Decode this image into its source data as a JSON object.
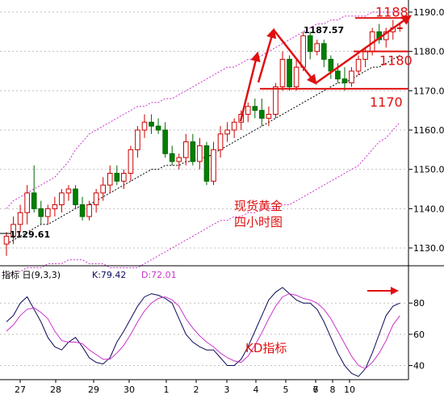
{
  "chart_data": [
    {
      "type": "candlestick",
      "y_axis": {
        "ticks": [
          1130.0,
          1140.0,
          1150.0,
          1160.0,
          1170.0,
          1180.0,
          1190.0
        ],
        "range": [
          1122,
          1192
        ]
      },
      "x_axis": {
        "ticks": [
          "27",
          "28",
          "29",
          "30",
          "1",
          "2",
          "3",
          "4",
          "5",
          "6",
          "7",
          "8",
          "10"
        ]
      },
      "candles": [
        {
          "o": 1131,
          "h": 1134,
          "l": 1128,
          "c": 1133
        },
        {
          "o": 1133,
          "h": 1138,
          "l": 1131,
          "c": 1136
        },
        {
          "o": 1136,
          "h": 1141,
          "l": 1134,
          "c": 1139
        },
        {
          "o": 1139,
          "h": 1146,
          "l": 1136,
          "c": 1144
        },
        {
          "o": 1144,
          "h": 1151,
          "l": 1139,
          "c": 1140
        },
        {
          "o": 1140,
          "h": 1142,
          "l": 1136,
          "c": 1138
        },
        {
          "o": 1138,
          "h": 1141,
          "l": 1136,
          "c": 1140
        },
        {
          "o": 1140,
          "h": 1143,
          "l": 1138,
          "c": 1141
        },
        {
          "o": 1141,
          "h": 1145,
          "l": 1139,
          "c": 1144
        },
        {
          "o": 1144,
          "h": 1146,
          "l": 1142,
          "c": 1145
        },
        {
          "o": 1145,
          "h": 1146,
          "l": 1140,
          "c": 1141
        },
        {
          "o": 1141,
          "h": 1143,
          "l": 1137,
          "c": 1138
        },
        {
          "o": 1138,
          "h": 1142,
          "l": 1137,
          "c": 1141
        },
        {
          "o": 1141,
          "h": 1145,
          "l": 1139,
          "c": 1144
        },
        {
          "o": 1144,
          "h": 1148,
          "l": 1142,
          "c": 1146
        },
        {
          "o": 1146,
          "h": 1151,
          "l": 1144,
          "c": 1149
        },
        {
          "o": 1149,
          "h": 1151,
          "l": 1146,
          "c": 1147
        },
        {
          "o": 1147,
          "h": 1150,
          "l": 1145,
          "c": 1149
        },
        {
          "o": 1149,
          "h": 1156,
          "l": 1147,
          "c": 1155
        },
        {
          "o": 1155,
          "h": 1161,
          "l": 1153,
          "c": 1160
        },
        {
          "o": 1160,
          "h": 1164,
          "l": 1158,
          "c": 1162
        },
        {
          "o": 1162,
          "h": 1164,
          "l": 1159,
          "c": 1161
        },
        {
          "o": 1161,
          "h": 1163,
          "l": 1159,
          "c": 1160
        },
        {
          "o": 1160,
          "h": 1162,
          "l": 1153,
          "c": 1154
        },
        {
          "o": 1154,
          "h": 1156,
          "l": 1151,
          "c": 1152
        },
        {
          "o": 1152,
          "h": 1154,
          "l": 1150,
          "c": 1153
        },
        {
          "o": 1153,
          "h": 1159,
          "l": 1151,
          "c": 1157
        },
        {
          "o": 1157,
          "h": 1159,
          "l": 1151,
          "c": 1152
        },
        {
          "o": 1152,
          "h": 1158,
          "l": 1150,
          "c": 1156
        },
        {
          "o": 1156,
          "h": 1157,
          "l": 1146,
          "c": 1147
        },
        {
          "o": 1147,
          "h": 1157,
          "l": 1146,
          "c": 1155
        },
        {
          "o": 1155,
          "h": 1161,
          "l": 1153,
          "c": 1159
        },
        {
          "o": 1159,
          "h": 1162,
          "l": 1157,
          "c": 1160
        },
        {
          "o": 1160,
          "h": 1163,
          "l": 1158,
          "c": 1162
        },
        {
          "o": 1162,
          "h": 1165,
          "l": 1160,
          "c": 1164
        },
        {
          "o": 1164,
          "h": 1167,
          "l": 1162,
          "c": 1166
        },
        {
          "o": 1166,
          "h": 1168,
          "l": 1163,
          "c": 1165
        },
        {
          "o": 1165,
          "h": 1168,
          "l": 1161,
          "c": 1163
        },
        {
          "o": 1163,
          "h": 1166,
          "l": 1161,
          "c": 1164
        },
        {
          "o": 1164,
          "h": 1172,
          "l": 1163,
          "c": 1171
        },
        {
          "o": 1171,
          "h": 1180,
          "l": 1170,
          "c": 1178
        },
        {
          "o": 1178,
          "h": 1179,
          "l": 1170,
          "c": 1171
        },
        {
          "o": 1171,
          "h": 1178,
          "l": 1170,
          "c": 1176
        },
        {
          "o": 1176,
          "h": 1185,
          "l": 1175,
          "c": 1184
        },
        {
          "o": 1184,
          "h": 1185,
          "l": 1178,
          "c": 1180
        },
        {
          "o": 1180,
          "h": 1183,
          "l": 1179,
          "c": 1182
        },
        {
          "o": 1182,
          "h": 1183,
          "l": 1176,
          "c": 1178
        },
        {
          "o": 1178,
          "h": 1179,
          "l": 1173,
          "c": 1175
        },
        {
          "o": 1175,
          "h": 1177,
          "l": 1172,
          "c": 1173
        },
        {
          "o": 1173,
          "h": 1176,
          "l": 1170,
          "c": 1172
        },
        {
          "o": 1172,
          "h": 1176,
          "l": 1171,
          "c": 1175
        },
        {
          "o": 1175,
          "h": 1179,
          "l": 1174,
          "c": 1178
        },
        {
          "o": 1178,
          "h": 1181,
          "l": 1176,
          "c": 1180
        },
        {
          "o": 1180,
          "h": 1186,
          "l": 1179,
          "c": 1185
        },
        {
          "o": 1185,
          "h": 1187,
          "l": 1182,
          "c": 1183
        },
        {
          "o": 1183,
          "h": 1186,
          "l": 1181,
          "c": 1185
        },
        {
          "o": 1185,
          "h": 1188,
          "l": 1183,
          "c": 1186
        },
        {
          "o": 1186,
          "h": 1187,
          "l": 1185,
          "c": 1186
        }
      ],
      "labels": {
        "high": "1187.57",
        "low": "1129.61",
        "title": "现货黄金\n四小时图"
      },
      "levels": [
        {
          "label": "1188",
          "price": 1188.5
        },
        {
          "label": "1180",
          "price": 1180.0
        },
        {
          "label": "1170",
          "price": 1170.5
        }
      ],
      "upper_band": [
        1140,
        1142,
        1143,
        1144,
        1145,
        1146,
        1147,
        1148,
        1150,
        1152,
        1155,
        1157,
        1159,
        1160,
        1161,
        1162,
        1163,
        1164,
        1165,
        1166,
        1166,
        1167,
        1167,
        1168,
        1168,
        1169,
        1170,
        1171,
        1172,
        1173,
        1174,
        1175,
        1176,
        1176,
        1177,
        1178,
        1178,
        1179,
        1180,
        1181,
        1182,
        1183,
        1184,
        1185,
        1186,
        1187,
        1187,
        1188,
        1188,
        1189,
        1189,
        1189,
        1189,
        1190,
        1190,
        1190,
        1190,
        1190
      ],
      "middle_band": [
        1131,
        1132,
        1133,
        1134,
        1135,
        1136,
        1136,
        1137,
        1138,
        1139,
        1140,
        1141,
        1141,
        1142,
        1143,
        1144,
        1145,
        1146,
        1147,
        1148,
        1149,
        1150,
        1150,
        1151,
        1151,
        1151,
        1152,
        1152,
        1153,
        1153,
        1154,
        1155,
        1156,
        1157,
        1158,
        1159,
        1160,
        1161,
        1162,
        1163,
        1164,
        1165,
        1166,
        1167,
        1168,
        1169,
        1170,
        1171,
        1172,
        1172,
        1173,
        1174,
        1175,
        1176,
        1176,
        1177,
        1178,
        1179
      ],
      "lower_band": [
        1123,
        1124,
        1124,
        1125,
        1125,
        1125,
        1126,
        1126,
        1126,
        1127,
        1127,
        1127,
        1126,
        1126,
        1126,
        1125,
        1125,
        1125,
        1125,
        1125,
        1126,
        1127,
        1128,
        1129,
        1130,
        1131,
        1132,
        1133,
        1134,
        1135,
        1136,
        1137,
        1137,
        1138,
        1138,
        1139,
        1139,
        1140,
        1140,
        1140,
        1141,
        1141,
        1142,
        1143,
        1144,
        1145,
        1146,
        1147,
        1148,
        1149,
        1150,
        1151,
        1153,
        1155,
        1157,
        1158,
        1160,
        1162
      ]
    },
    {
      "type": "line",
      "header": {
        "prefix": "指标 日(9,3,3)",
        "k_text": "K:79.42",
        "d_text": "D:72.01"
      },
      "y_axis": {
        "ticks": [
          40,
          60,
          80
        ],
        "range": [
          32,
          92
        ]
      },
      "title": "KD指标",
      "series": [
        {
          "name": "K",
          "values": [
            68,
            72,
            80,
            84,
            76,
            68,
            58,
            52,
            50,
            55,
            58,
            52,
            45,
            42,
            41,
            45,
            55,
            62,
            70,
            78,
            84,
            86,
            85,
            83,
            80,
            70,
            60,
            55,
            52,
            50,
            50,
            45,
            40,
            40,
            44,
            52,
            62,
            72,
            82,
            87,
            90,
            86,
            82,
            80,
            80,
            76,
            68,
            58,
            48,
            40,
            35,
            33,
            38,
            48,
            60,
            72,
            78,
            80
          ]
        },
        {
          "name": "D",
          "values": [
            62,
            66,
            72,
            76,
            77,
            74,
            70,
            62,
            56,
            55,
            55,
            54,
            50,
            47,
            44,
            44,
            48,
            53,
            60,
            68,
            75,
            80,
            83,
            84,
            82,
            78,
            70,
            64,
            59,
            55,
            52,
            48,
            45,
            43,
            42,
            46,
            53,
            61,
            70,
            78,
            84,
            86,
            85,
            83,
            82,
            80,
            76,
            70,
            62,
            54,
            46,
            40,
            38,
            42,
            48,
            56,
            66,
            72
          ]
        }
      ]
    }
  ],
  "colors": {
    "kd_k": "#0a0a5a",
    "kd_d": "#cc33cc"
  }
}
